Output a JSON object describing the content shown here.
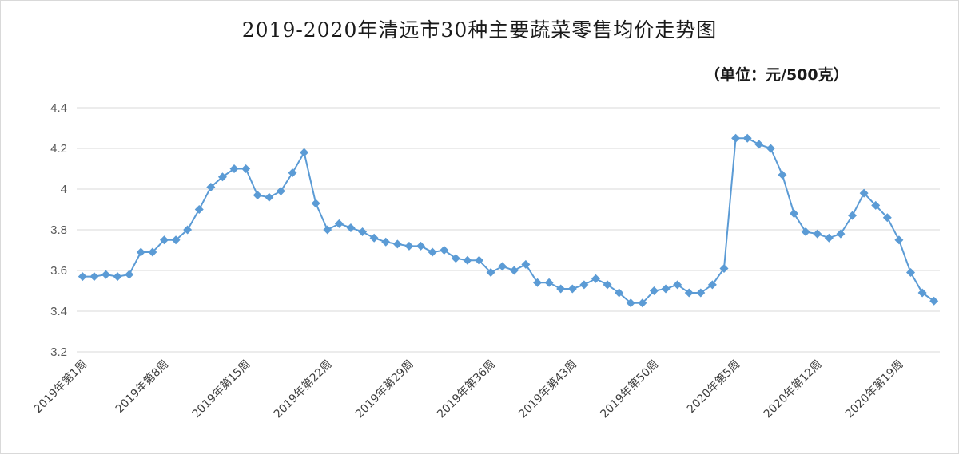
{
  "chart_data": {
    "type": "line",
    "title": "2019-2020年清远市30种主要蔬菜零售均价走势图",
    "subtitle": "（单位：元/500克）",
    "xlabel": "",
    "ylabel": "",
    "ylim": [
      3.2,
      4.4
    ],
    "yticks": [
      "3.2",
      "3.4",
      "3.6",
      "3.8",
      "4",
      "4.2",
      "4.4"
    ],
    "xtick_labels": [
      "2019年第1周",
      "2019年第8周",
      "2019年第15周",
      "2019年第22周",
      "2019年第29周",
      "2019年第36周",
      "2019年第43周",
      "2019年第50周",
      "2020年第5周",
      "2020年第12周",
      "2020年第19周"
    ],
    "xtick_every": 7,
    "grid": true,
    "legend": "none",
    "color": "#5b9bd5",
    "values": [
      3.57,
      3.57,
      3.58,
      3.57,
      3.58,
      3.69,
      3.69,
      3.75,
      3.75,
      3.8,
      3.9,
      4.01,
      4.06,
      4.1,
      4.1,
      3.97,
      3.96,
      3.99,
      4.08,
      4.18,
      3.93,
      3.8,
      3.83,
      3.81,
      3.79,
      3.76,
      3.74,
      3.73,
      3.72,
      3.72,
      3.69,
      3.7,
      3.66,
      3.65,
      3.65,
      3.59,
      3.62,
      3.6,
      3.63,
      3.54,
      3.54,
      3.51,
      3.51,
      3.53,
      3.56,
      3.53,
      3.49,
      3.44,
      3.44,
      3.5,
      3.51,
      3.53,
      3.49,
      3.49,
      3.53,
      3.61,
      4.25,
      4.25,
      4.22,
      4.2,
      4.07,
      3.88,
      3.79,
      3.78,
      3.76,
      3.78,
      3.87,
      3.98,
      3.92,
      3.86,
      3.75,
      3.59,
      3.49,
      3.45
    ]
  }
}
